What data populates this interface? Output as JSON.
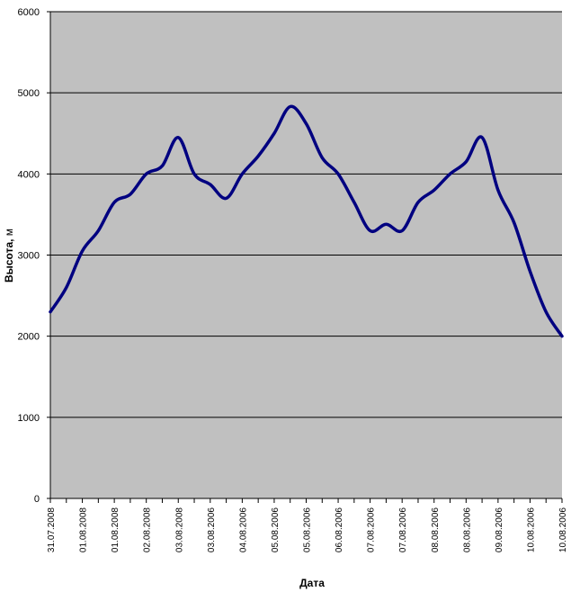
{
  "chart_data": {
    "type": "line",
    "title": "",
    "xlabel": "Дата",
    "ylabel_bold": "Высота,",
    "ylabel_unit": " м",
    "ylim": [
      0,
      6000
    ],
    "yticks": [
      "0",
      "1000",
      "2000",
      "3000",
      "4000",
      "5000",
      "6000"
    ],
    "ytick_values": [
      0,
      1000,
      2000,
      3000,
      4000,
      5000,
      6000
    ],
    "grid": true,
    "legend": "none",
    "colors": {
      "plot_bg": "#c0c0c0",
      "line": "#000080",
      "grid": "#000000"
    },
    "xtick_labels": [
      "31.07.2008",
      "01.08.2008",
      "01.08.2008",
      "02.08.2008",
      "03.08.2008",
      "03.08.2006",
      "04.08.2006",
      "05.08.2006",
      "05.08.2006",
      "06.08.2006",
      "07.08.2006",
      "07.08.2006",
      "08.08.2006",
      "08.08.2006",
      "09.08.2006",
      "10.08.2006",
      "10.08.2006"
    ],
    "x_points": 33,
    "series": [
      {
        "values": [
          2300,
          2600,
          3050,
          3300,
          3650,
          3750,
          4000,
          4100,
          4450,
          4000,
          3870,
          3700,
          4000,
          4220,
          4500,
          4830,
          4620,
          4200,
          4000,
          3650,
          3300,
          3380,
          3300,
          3650,
          3800,
          4000,
          4150,
          4450,
          3800,
          3400,
          2800,
          2300,
          2000
        ]
      }
    ]
  }
}
